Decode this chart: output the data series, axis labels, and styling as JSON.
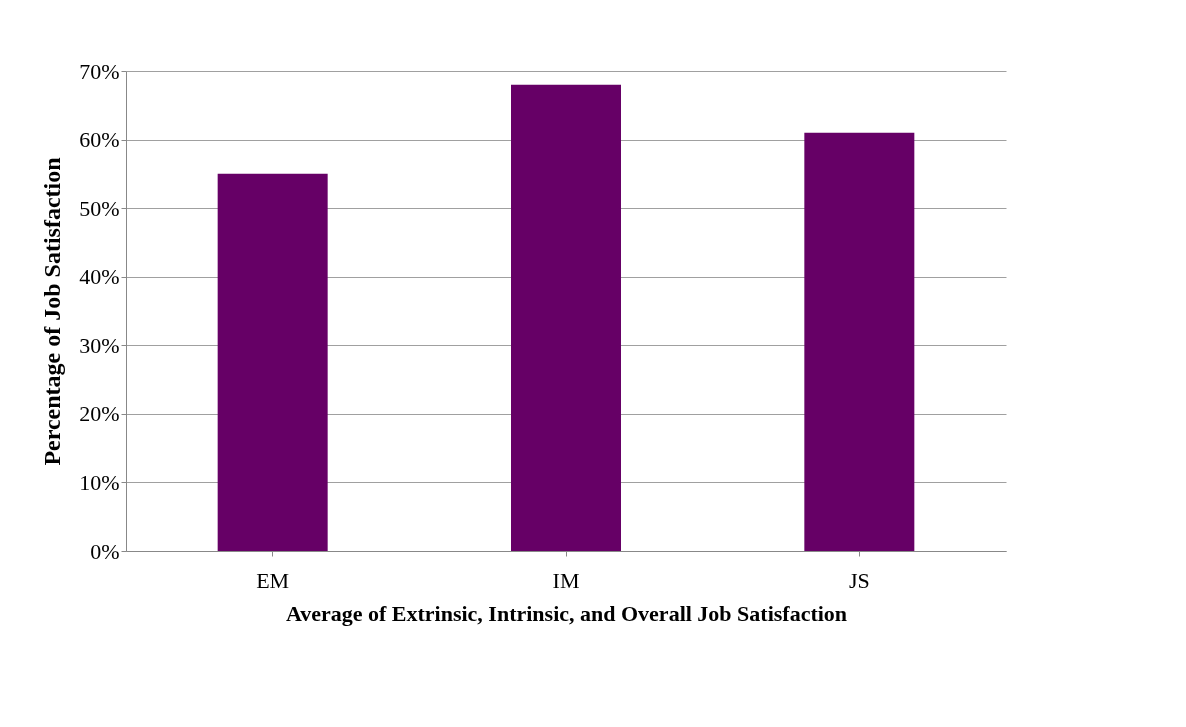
{
  "chart_data": {
    "type": "bar",
    "xlabel": "Average of Extrinsic, Intrinsic,  and Overall Job Satisfaction",
    "ylabel": "Percentage of Job Satisfaction",
    "categories": [
      "EM",
      "IM",
      "JS"
    ],
    "values": [
      55,
      68,
      61
    ],
    "color": "#660066",
    "ylim": [
      0,
      70
    ],
    "yticks": [
      {
        "value": 0,
        "label": "0%"
      },
      {
        "value": 10,
        "label": "10%"
      },
      {
        "value": 20,
        "label": "20%"
      },
      {
        "value": 30,
        "label": "30%"
      },
      {
        "value": 40,
        "label": "40%"
      },
      {
        "value": 50,
        "label": "50%"
      },
      {
        "value": 60,
        "label": "60%"
      },
      {
        "value": 70,
        "label": "70%"
      }
    ],
    "grid": "y"
  }
}
